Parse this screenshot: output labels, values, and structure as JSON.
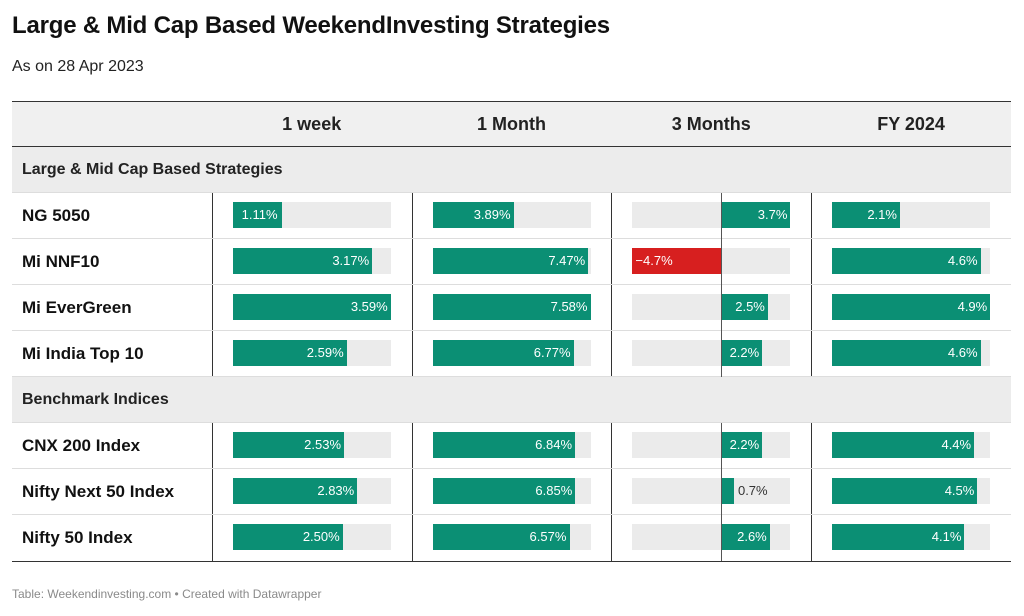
{
  "header": {
    "title": "Large & Mid Cap Based WeekendInvesting Strategies",
    "subtitle": "As on 28 Apr 2023"
  },
  "columns": [
    "1 week",
    "1 Month",
    "3 Months",
    "FY 2024"
  ],
  "colors": {
    "positive": "#0b8f74",
    "negative": "#d71f1f",
    "track": "#ebebeb"
  },
  "chart_data": {
    "type": "table",
    "columns": [
      "1 week",
      "1 Month",
      "3 Months",
      "FY 2024"
    ],
    "col_ranges": [
      [
        0,
        3.59
      ],
      [
        0,
        7.58
      ],
      [
        -4.7,
        3.7
      ],
      [
        0,
        4.9
      ]
    ],
    "groups": [
      {
        "name": "Large & Mid Cap Based Strategies",
        "rows": [
          {
            "name": "NG 5050",
            "values": [
              1.11,
              3.89,
              3.7,
              2.1
            ],
            "labels": [
              "1.11%",
              "3.89%",
              "3.7%",
              "2.1%"
            ]
          },
          {
            "name": "Mi NNF10",
            "values": [
              3.17,
              7.47,
              -4.7,
              4.6
            ],
            "labels": [
              "3.17%",
              "7.47%",
              "−4.7%",
              "4.6%"
            ]
          },
          {
            "name": "Mi EverGreen",
            "values": [
              3.59,
              7.58,
              2.5,
              4.9
            ],
            "labels": [
              "3.59%",
              "7.58%",
              "2.5%",
              "4.9%"
            ]
          },
          {
            "name": "Mi India Top 10",
            "values": [
              2.59,
              6.77,
              2.2,
              4.6
            ],
            "labels": [
              "2.59%",
              "6.77%",
              "2.2%",
              "4.6%"
            ]
          }
        ]
      },
      {
        "name": "Benchmark Indices",
        "rows": [
          {
            "name": "CNX 200 Index",
            "values": [
              2.53,
              6.84,
              2.2,
              4.4
            ],
            "labels": [
              "2.53%",
              "6.84%",
              "2.2%",
              "4.4%"
            ]
          },
          {
            "name": "Nifty Next 50 Index",
            "values": [
              2.83,
              6.85,
              0.7,
              4.5
            ],
            "labels": [
              "2.83%",
              "6.85%",
              "0.7%",
              "4.5%"
            ]
          },
          {
            "name": "Nifty 50 Index",
            "values": [
              2.5,
              6.57,
              2.6,
              4.1
            ],
            "labels": [
              "2.50%",
              "6.57%",
              "2.6%",
              "4.1%"
            ]
          }
        ]
      }
    ]
  },
  "footer": "Table: Weekendinvesting.com • Created with Datawrapper"
}
